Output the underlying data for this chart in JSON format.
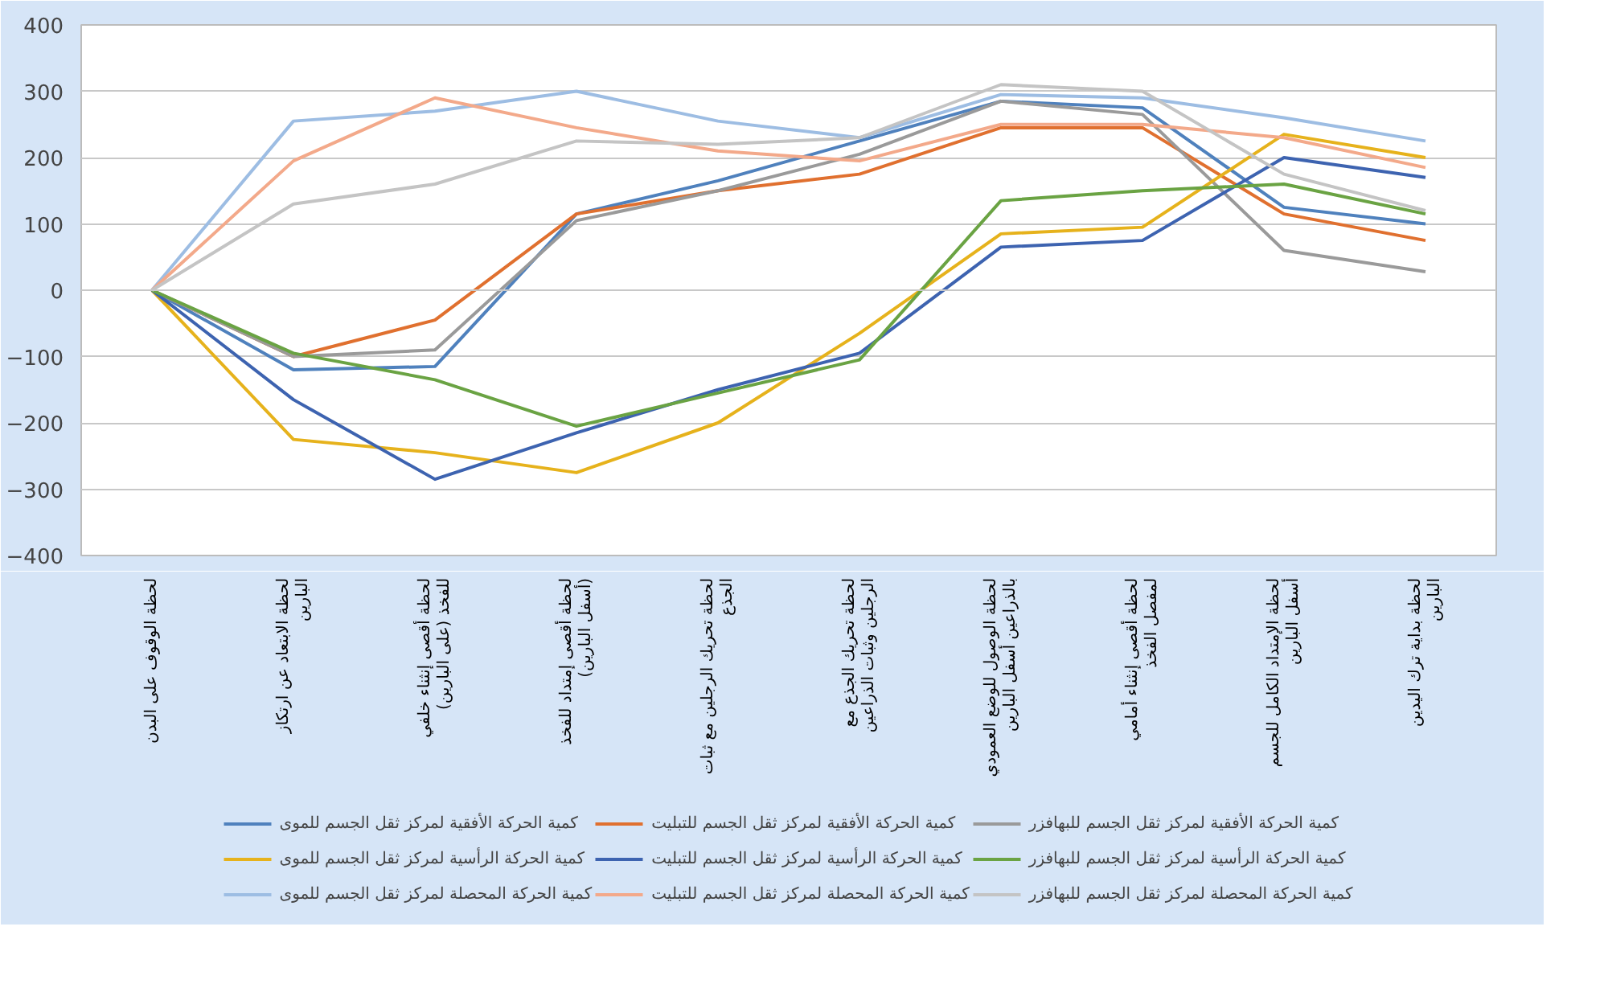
{
  "chart_data": {
    "type": "line",
    "categories": [
      "لحظة الوقوف على البدن",
      "لحظة الابتعاد عن ارتكاز البارين",
      "لحظة أقصى إنثناء خلفي للفخذ (على البارين)",
      "لحظة أقصى إمتداد للفخذ (أسفل البارين)",
      "لحظة تحريك الرجلين مع ثبات الجذع",
      "لحظة تحريك الجذع مع الرجلين وثبات الذراعين",
      "لحظة الوصول للوضع العمودي بالذراعين أسفل البارين",
      "لحظة أقصى إنثناء أمامي لمفصل الفخذ",
      "لحظة الإمتداد الكامل للجسم أسفل البارين",
      "لحظة بداية ترك اليدين البارين"
    ],
    "series": [
      {
        "name": "كمية الحركة الأفقية لمركز ثقل الجسم للموى",
        "color": "#4f81bd",
        "values": [
          0,
          -120,
          -115,
          115,
          165,
          225,
          285,
          275,
          125,
          100
        ]
      },
      {
        "name": "كمية الحركة الأفقية لمركز ثقل الجسم للتبليت",
        "color": "#e0702f",
        "values": [
          0,
          -100,
          -45,
          115,
          150,
          175,
          245,
          245,
          115,
          75
        ]
      },
      {
        "name": "كمية الحركة الأفقية لمركز ثقل الجسم للبهافزر",
        "color": "#9a9a9a",
        "values": [
          0,
          -100,
          -90,
          105,
          150,
          205,
          285,
          265,
          60,
          28
        ]
      },
      {
        "name": "كمية الحركة الرأسية لمركز ثقل الجسم للموى",
        "color": "#e6b21c",
        "values": [
          0,
          -225,
          -245,
          -275,
          -200,
          -65,
          85,
          95,
          235,
          200
        ]
      },
      {
        "name": "كمية الحركة الرأسية لمركز ثقل الجسم للتبليت",
        "color": "#3d63b0",
        "values": [
          0,
          -165,
          -285,
          -215,
          -150,
          -95,
          65,
          75,
          200,
          170
        ]
      },
      {
        "name": "كمية الحركة الرأسية لمركز ثقل الجسم للبهافزر",
        "color": "#6aa343",
        "values": [
          0,
          -95,
          -135,
          -205,
          -155,
          -105,
          135,
          150,
          160,
          115
        ]
      },
      {
        "name": "كمية الحركة المحصلة لمركز ثقل الجسم للموى",
        "color": "#9dbde3",
        "values": [
          0,
          255,
          270,
          300,
          255,
          230,
          295,
          290,
          260,
          225
        ]
      },
      {
        "name": "كمية الحركة المحصلة لمركز ثقل الجسم للتبليت",
        "color": "#f3a98a",
        "values": [
          0,
          195,
          290,
          245,
          210,
          195,
          250,
          250,
          230,
          185
        ]
      },
      {
        "name": "كمية الحركة المحصلة لمركز ثقل الجسم للبهافزر",
        "color": "#c4c4c4",
        "values": [
          0,
          130,
          160,
          225,
          220,
          230,
          310,
          300,
          175,
          120
        ]
      }
    ],
    "ylim": [
      -400,
      400
    ],
    "yticks": [
      -400,
      -300,
      -200,
      -100,
      0,
      100,
      200,
      300,
      400
    ],
    "grid": "y",
    "legend": "bottom",
    "line_style": "solid"
  }
}
